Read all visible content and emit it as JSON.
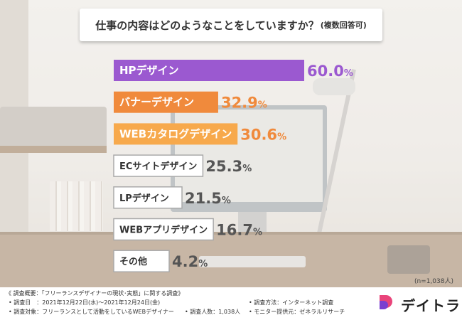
{
  "title": "仕事の内容はどのようなことをしていますか？",
  "title_note": "(複数回答可)",
  "sample_note": "(n=1,038人)",
  "colors": {
    "top": "#9b59d0",
    "second": "#f08a3c",
    "third": "#f7a94c",
    "others": "#ffffff",
    "outline": "#aaaaaa",
    "value_top": "#9b59d0",
    "value_orange": "#f08a3c",
    "value_gray": "#555555"
  },
  "chart_data": {
    "type": "bar",
    "orientation": "horizontal",
    "categories": [
      "HPデザイン",
      "バナーデザイン",
      "WEBカタログデザイン",
      "ECサイトデザイン",
      "LPデザイン",
      "WEBアプリデザイン",
      "その他"
    ],
    "values": [
      60.0,
      32.9,
      30.6,
      25.3,
      21.5,
      16.7,
      4.2
    ],
    "value_labels": [
      "60.0%",
      "32.9%",
      "30.6%",
      "25.3%",
      "21.5%",
      "16.7%",
      "4.2%"
    ],
    "unit": "%",
    "title": "仕事の内容はどのようなことをしていますか？(複数回答可)",
    "xlim": [
      0,
      60
    ]
  },
  "footer": {
    "overview": "《 調査概要：「フリーランスデザイナーの現状･実態」に関する調査》",
    "date": "• 調査日　：2021年12月22日(水)～2021年12月24日(金)",
    "target": "• 調査対象：フリーランスとして活動をしているWEBデザイナー",
    "count": "• 調査人数：1,038人",
    "method": "• 調査方法：インターネット調査",
    "provider": "• モニター提供元：ゼネラルリサーチ",
    "brand": "デイトラ"
  }
}
